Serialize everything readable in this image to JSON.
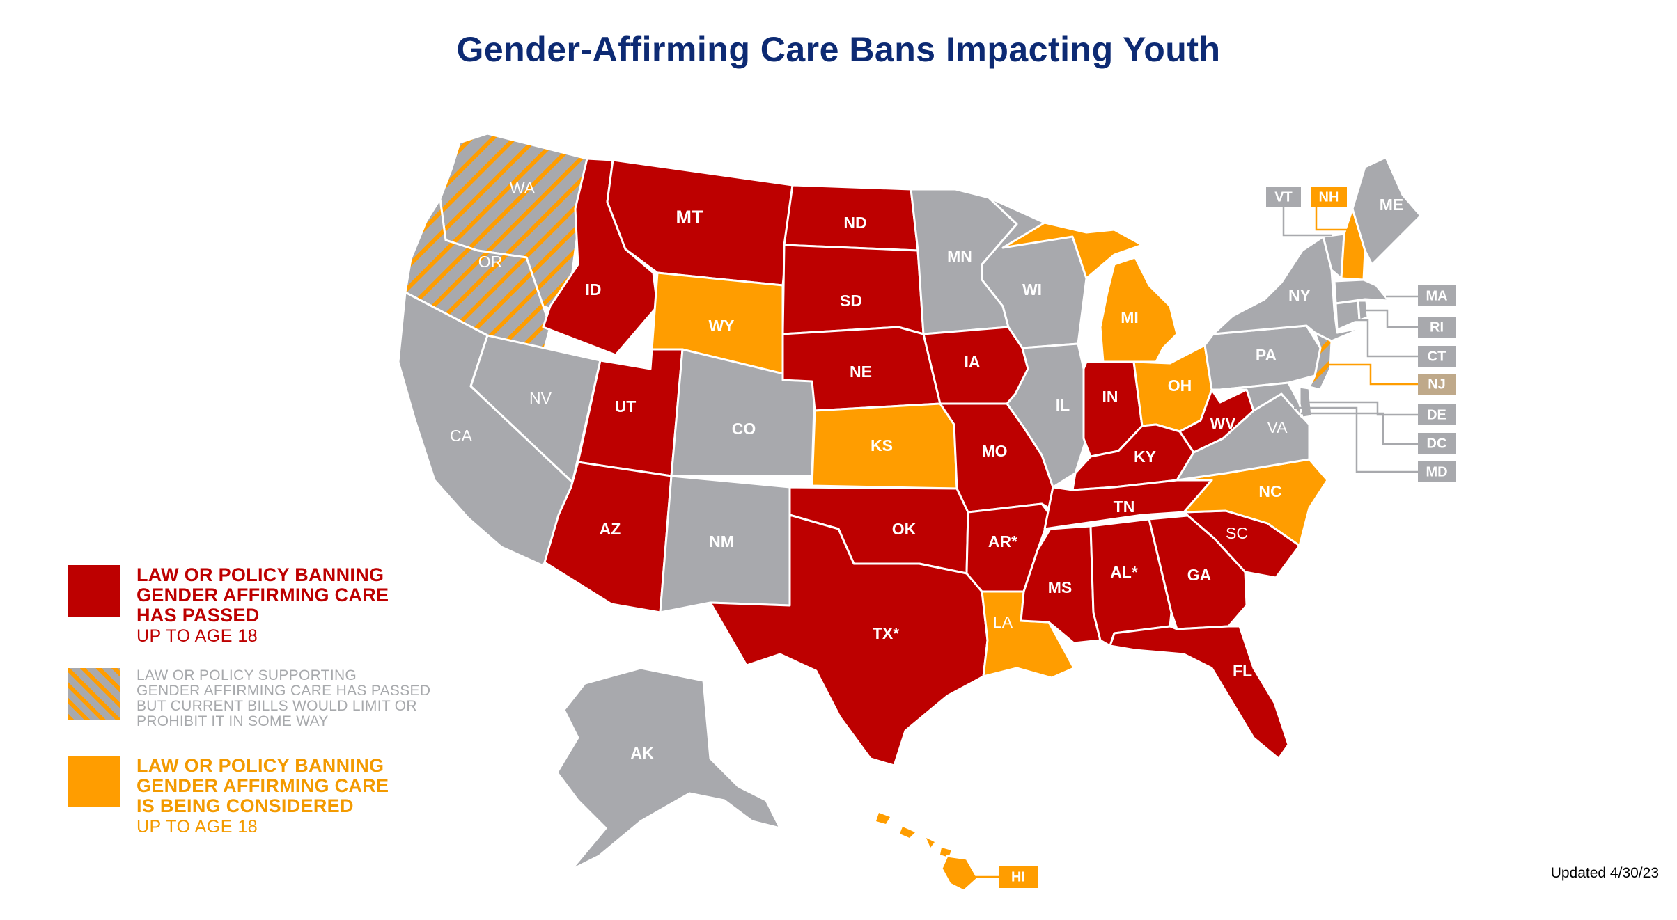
{
  "title": "Gender-Affirming Care Bans Impacting Youth",
  "updated": "Updated 4/30/23",
  "colors": {
    "passed": "#bd0000",
    "considered": "#ff9d00",
    "none": "#a8a9ad",
    "title": "#0d2a73"
  },
  "legend": {
    "passed": {
      "heading": [
        "LAW OR POLICY BANNING",
        "GENDER AFFIRMING CARE",
        "HAS PASSED"
      ],
      "sub": "UP TO AGE 18"
    },
    "supporting": {
      "lines": [
        "LAW OR POLICY SUPPORTING",
        "GENDER AFFIRMING CARE HAS PASSED",
        "BUT CURRENT BILLS WOULD LIMIT OR",
        "PROHIBIT IT IN SOME WAY"
      ]
    },
    "considered": {
      "heading": [
        "LAW OR POLICY BANNING",
        "GENDER AFFIRMING CARE",
        "IS BEING CONSIDERED"
      ],
      "sub": "UP TO AGE 18"
    }
  },
  "states": {
    "WA": "WA",
    "OR": "OR",
    "CA": "CA",
    "NV": "NV",
    "ID": "ID",
    "MT": "MT",
    "WY": "WY",
    "UT": "UT",
    "AZ": "AZ",
    "CO": "CO",
    "NM": "NM",
    "ND": "ND",
    "SD": "SD",
    "NE": "NE",
    "KS": "KS",
    "OK": "OK",
    "TX": "TX*",
    "MN": "MN",
    "IA": "IA",
    "MO": "MO",
    "AR": "AR*",
    "LA": "LA",
    "WI": "WI",
    "IL": "IL",
    "MI": "MI",
    "IN": "IN",
    "OH": "OH",
    "KY": "KY",
    "TN": "TN",
    "MS": "MS",
    "AL": "AL*",
    "GA": "GA",
    "FL": "FL",
    "SC": "SC",
    "NC": "NC",
    "VA": "VA",
    "WV": "WV",
    "PA": "PA",
    "NY": "NY",
    "ME": "ME",
    "AK": "AK",
    "HI": "HI"
  },
  "small_states": {
    "VT": "VT",
    "NH": "NH",
    "MA": "MA",
    "RI": "RI",
    "CT": "CT",
    "NJ": "NJ",
    "DE": "DE",
    "DC": "DC",
    "MD": "MD"
  }
}
